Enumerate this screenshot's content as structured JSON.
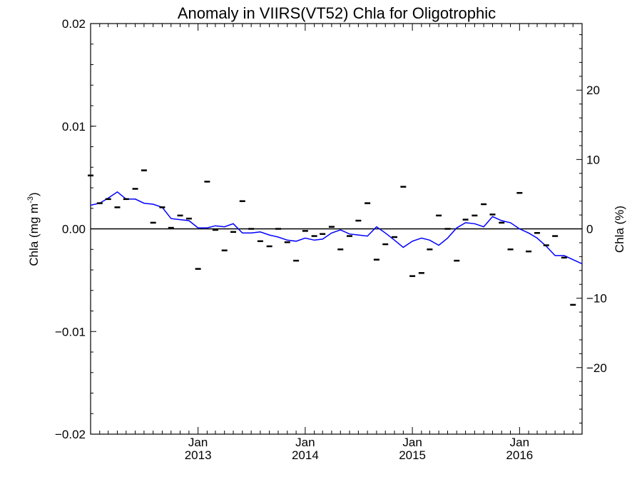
{
  "chart_data": {
    "type": "line",
    "title": "Anomaly in VIIRS(VT52) Chla for Oligotrophic",
    "ylabel_main": "Chla (mg m",
    "ylabel_sup": "-3",
    "ylabel_close": ")",
    "y2label": "Chla (%)",
    "xlim": [
      "2012-01-01",
      "2016-08-01"
    ],
    "ylim": [
      -0.02,
      0.02
    ],
    "y2lim": [
      -29.6,
      29.6
    ],
    "y_ticks": [
      "−0.02",
      "−0.01",
      "0.00",
      "0.01",
      "0.02"
    ],
    "y_tick_values": [
      -0.02,
      -0.01,
      0.0,
      0.01,
      0.02
    ],
    "y2_ticks": [
      "−20",
      "−10",
      "0",
      "10",
      "20"
    ],
    "y2_tick_values": [
      -20,
      -10,
      0,
      10,
      20
    ],
    "x_tick_dates": [
      "2013-01-01",
      "2014-01-01",
      "2015-01-01",
      "2016-01-01"
    ],
    "x_tick_month": [
      "Jan",
      "Jan",
      "Jan",
      "Jan"
    ],
    "x_tick_year": [
      "2013",
      "2014",
      "2015",
      "2016"
    ],
    "zero_line": 0,
    "line_color": "#0000ff",
    "series": [
      {
        "style": "line",
        "color": "#0000ff",
        "points": [
          [
            "2012-01-01",
            0.0023
          ],
          [
            "2012-02-01",
            0.0025
          ],
          [
            "2012-03-01",
            0.003
          ],
          [
            "2012-04-01",
            0.0036
          ],
          [
            "2012-05-01",
            0.0029
          ],
          [
            "2012-06-01",
            0.0029
          ],
          [
            "2012-07-01",
            0.0025
          ],
          [
            "2012-08-01",
            0.0024
          ],
          [
            "2012-09-01",
            0.0021
          ],
          [
            "2012-10-01",
            0.001
          ],
          [
            "2012-11-01",
            0.0009
          ],
          [
            "2012-12-01",
            0.0008
          ],
          [
            "2013-01-01",
            0.0001
          ],
          [
            "2013-02-01",
            0.0001
          ],
          [
            "2013-03-01",
            0.0003
          ],
          [
            "2013-04-01",
            0.0002
          ],
          [
            "2013-05-01",
            0.0005
          ],
          [
            "2013-06-01",
            -0.0004
          ],
          [
            "2013-07-01",
            -0.0004
          ],
          [
            "2013-08-01",
            -0.0003
          ],
          [
            "2013-09-01",
            -0.0006
          ],
          [
            "2013-10-01",
            -0.0008
          ],
          [
            "2013-11-01",
            -0.0011
          ],
          [
            "2013-12-01",
            -0.0012
          ],
          [
            "2014-01-01",
            -0.0009
          ],
          [
            "2014-02-01",
            -0.0011
          ],
          [
            "2014-03-01",
            -0.001
          ],
          [
            "2014-04-01",
            -0.0004
          ],
          [
            "2014-05-01",
            -0.0001
          ],
          [
            "2014-06-01",
            -0.0005
          ],
          [
            "2014-07-01",
            -0.0006
          ],
          [
            "2014-08-01",
            -0.0007
          ],
          [
            "2014-09-01",
            0.0002
          ],
          [
            "2014-10-01",
            -0.0004
          ],
          [
            "2014-11-01",
            -0.0011
          ],
          [
            "2014-12-01",
            -0.0018
          ],
          [
            "2015-01-01",
            -0.0012
          ],
          [
            "2015-02-01",
            -0.0009
          ],
          [
            "2015-03-01",
            -0.0011
          ],
          [
            "2015-04-01",
            -0.0016
          ],
          [
            "2015-05-01",
            -0.0009
          ],
          [
            "2015-06-01",
            0.0001
          ],
          [
            "2015-07-01",
            0.0006
          ],
          [
            "2015-08-01",
            0.0005
          ],
          [
            "2015-09-01",
            0.0002
          ],
          [
            "2015-10-01",
            0.0012
          ],
          [
            "2015-11-01",
            0.0008
          ],
          [
            "2015-12-01",
            0.0006
          ],
          [
            "2016-01-01",
            0.0
          ],
          [
            "2016-02-01",
            -0.0004
          ],
          [
            "2016-03-01",
            -0.0009
          ],
          [
            "2016-04-01",
            -0.0017
          ],
          [
            "2016-05-01",
            -0.0026
          ],
          [
            "2016-06-01",
            -0.0026
          ],
          [
            "2016-07-01",
            -0.003
          ],
          [
            "2016-08-01",
            -0.0034
          ]
        ]
      },
      {
        "style": "markers",
        "marker": "dash",
        "color": "#000000",
        "points": [
          [
            "2012-01-01",
            0.0052
          ],
          [
            "2012-02-01",
            0.0025
          ],
          [
            "2012-03-01",
            0.0029
          ],
          [
            "2012-04-01",
            0.0021
          ],
          [
            "2012-05-01",
            0.0029
          ],
          [
            "2012-06-01",
            0.0039
          ],
          [
            "2012-07-01",
            0.0057
          ],
          [
            "2012-08-01",
            0.0006
          ],
          [
            "2012-09-01",
            0.0021
          ],
          [
            "2012-10-01",
            0.0001
          ],
          [
            "2012-11-01",
            0.0013
          ],
          [
            "2012-12-01",
            0.001
          ],
          [
            "2013-01-01",
            -0.0039
          ],
          [
            "2013-02-01",
            0.0046
          ],
          [
            "2013-03-01",
            -0.0001
          ],
          [
            "2013-04-01",
            -0.0021
          ],
          [
            "2013-05-01",
            -0.0003
          ],
          [
            "2013-06-01",
            0.0027
          ],
          [
            "2013-07-01",
            0.0
          ],
          [
            "2013-08-01",
            -0.0012
          ],
          [
            "2013-09-01",
            -0.0017
          ],
          [
            "2013-10-01",
            0.0
          ],
          [
            "2013-11-01",
            -0.0013
          ],
          [
            "2013-12-01",
            -0.0031
          ],
          [
            "2014-01-01",
            -0.0002
          ],
          [
            "2014-02-01",
            -0.0007
          ],
          [
            "2014-03-01",
            -0.0005
          ],
          [
            "2014-04-01",
            0.0002
          ],
          [
            "2014-05-01",
            -0.002
          ],
          [
            "2014-06-01",
            -0.0007
          ],
          [
            "2014-07-01",
            0.0008
          ],
          [
            "2014-08-01",
            0.0025
          ],
          [
            "2014-09-01",
            -0.003
          ],
          [
            "2014-10-01",
            -0.0015
          ],
          [
            "2014-11-01",
            -0.0008
          ],
          [
            "2014-12-01",
            0.0041
          ],
          [
            "2015-01-01",
            -0.0046
          ],
          [
            "2015-02-01",
            -0.0043
          ],
          [
            "2015-03-01",
            -0.002
          ],
          [
            "2015-04-01",
            0.0013
          ],
          [
            "2015-05-01",
            0.0
          ],
          [
            "2015-06-01",
            -0.0031
          ],
          [
            "2015-07-01",
            0.0009
          ],
          [
            "2015-08-01",
            0.0013
          ],
          [
            "2015-09-01",
            0.0024
          ],
          [
            "2015-10-01",
            0.0014
          ],
          [
            "2015-11-01",
            0.0006
          ],
          [
            "2015-12-01",
            -0.002
          ],
          [
            "2016-01-01",
            0.0035
          ],
          [
            "2016-02-01",
            -0.0022
          ],
          [
            "2016-03-01",
            -0.0004
          ],
          [
            "2016-04-01",
            -0.0016
          ],
          [
            "2016-05-01",
            -0.0007
          ],
          [
            "2016-06-01",
            -0.0028
          ],
          [
            "2016-07-01",
            -0.0074
          ]
        ]
      }
    ],
    "grid": false,
    "legend": "none"
  }
}
